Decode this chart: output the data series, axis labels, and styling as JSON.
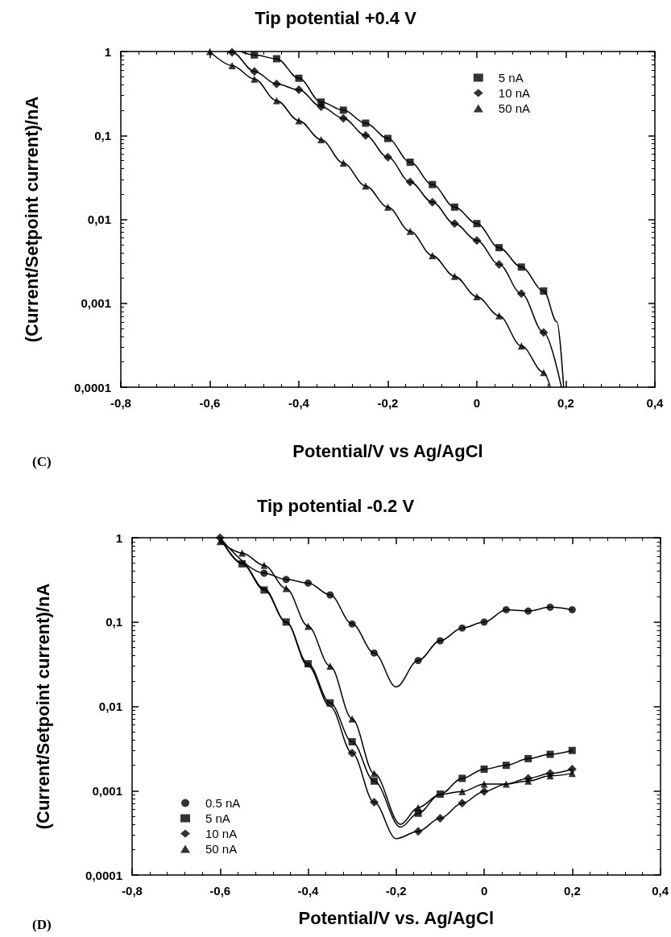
{
  "chart_data": [
    {
      "type": "scatter",
      "title": "Tip potential +0.4 V",
      "xlabel": "Potential/V vs Ag/AgCl",
      "ylabel": "(Current/Setpoint current)/nA",
      "annotations": [
        "(C)"
      ],
      "log": "y",
      "legend": "top right",
      "xlim": [
        -0.8,
        0.4
      ],
      "xticks": [
        {
          "value": -0.8,
          "label": "-0,8"
        },
        {
          "value": -0.6,
          "label": "-0,6"
        },
        {
          "value": -0.4,
          "label": "-0,4"
        },
        {
          "value": -0.2,
          "label": "-0,2"
        },
        0,
        {
          "value": 0.2,
          "label": "0,2"
        },
        {
          "value": 0.4,
          "label": "0,4"
        }
      ],
      "ylim": [
        0.0001,
        1
      ],
      "yticks": [
        {
          "value": 0.0001,
          "label": "0,0001"
        },
        {
          "value": 0.001,
          "label": "0,001"
        },
        {
          "value": 0.01,
          "label": "0,01"
        },
        {
          "value": 0.1,
          "label": "0,1"
        },
        1
      ],
      "series": [
        {
          "name": "5 nA",
          "color": "#000000",
          "marker": "square",
          "x": [
            -0.5,
            -0.45,
            -0.4,
            -0.35,
            -0.3,
            -0.25,
            -0.2,
            -0.15,
            -0.1,
            -0.05,
            0,
            0.05,
            0.1,
            0.15
          ],
          "values": [
            0.91,
            0.82,
            0.48,
            0.25,
            0.2,
            0.14,
            0.092,
            0.048,
            0.026,
            0.014,
            0.0089,
            0.0046,
            0.0027,
            0.0014
          ]
        },
        {
          "name": "10 nA",
          "color": "#000000",
          "marker": "diamond",
          "x": [
            -0.55,
            -0.5,
            -0.45,
            -0.4,
            -0.35,
            -0.3,
            -0.25,
            -0.2,
            -0.15,
            -0.1,
            -0.05,
            0,
            0.05,
            0.1,
            0.15
          ],
          "values": [
            0.98,
            0.58,
            0.41,
            0.35,
            0.22,
            0.16,
            0.1,
            0.055,
            0.028,
            0.016,
            0.0089,
            0.0056,
            0.0029,
            0.0013,
            0.00045
          ]
        },
        {
          "name": "50 nA",
          "color": "#000000",
          "marker": "triangle",
          "x": [
            -0.6,
            -0.55,
            -0.5,
            -0.45,
            -0.4,
            -0.35,
            -0.3,
            -0.25,
            -0.2,
            -0.15,
            -0.1,
            -0.05,
            0,
            0.05,
            0.1,
            0.15
          ],
          "values": [
            1,
            0.68,
            0.47,
            0.26,
            0.15,
            0.089,
            0.047,
            0.025,
            0.014,
            0.0072,
            0.0037,
            0.0021,
            0.0012,
            0.00071,
            0.00031,
            0.00015
          ]
        },
        {
          "type": "line",
          "color": "#000000",
          "marker": "none",
          "x": [
            -0.53,
            -0.5,
            -0.45,
            -0.4,
            -0.35,
            -0.3,
            -0.25,
            -0.2,
            -0.15,
            -0.1,
            -0.05,
            0,
            0.05,
            0.1,
            0.15,
            0.18,
            0.195
          ],
          "values": [
            1,
            0.91,
            0.82,
            0.48,
            0.25,
            0.2,
            0.14,
            0.092,
            0.048,
            0.026,
            0.014,
            0.0089,
            0.0046,
            0.0027,
            0.0014,
            0.0006,
            0.0001
          ]
        },
        {
          "type": "line",
          "color": "#000000",
          "marker": "none",
          "x": [
            -0.56,
            -0.55,
            -0.5,
            -0.45,
            -0.4,
            -0.35,
            -0.3,
            -0.25,
            -0.2,
            -0.15,
            -0.1,
            -0.05,
            0,
            0.05,
            0.1,
            0.15,
            0.19
          ],
          "values": [
            1,
            0.98,
            0.58,
            0.41,
            0.35,
            0.22,
            0.16,
            0.1,
            0.055,
            0.028,
            0.016,
            0.0089,
            0.0056,
            0.0029,
            0.0013,
            0.00045,
            0.0001
          ]
        },
        {
          "type": "line",
          "color": "#000000",
          "marker": "none",
          "x": [
            -0.6,
            -0.55,
            -0.5,
            -0.45,
            -0.4,
            -0.35,
            -0.3,
            -0.25,
            -0.2,
            -0.15,
            -0.1,
            -0.05,
            0,
            0.05,
            0.1,
            0.15,
            0.165
          ],
          "values": [
            1,
            0.68,
            0.47,
            0.26,
            0.15,
            0.089,
            0.047,
            0.025,
            0.014,
            0.0072,
            0.0037,
            0.0021,
            0.0012,
            0.00071,
            0.00031,
            0.00015,
            0.0001
          ]
        }
      ]
    },
    {
      "type": "scatter",
      "title": "Tip potential -0.2 V",
      "xlabel": "Potential/V vs. Ag/AgCl",
      "ylabel": "(Current/Setpoint current)/nA",
      "annotations": [
        "(D)"
      ],
      "log": "y",
      "legend": "bottom left",
      "xlim": [
        -0.8,
        0.4
      ],
      "xticks": [
        {
          "value": -0.8,
          "label": "-0,8"
        },
        {
          "value": -0.6,
          "label": "-0,6"
        },
        {
          "value": -0.4,
          "label": "-0,4"
        },
        {
          "value": -0.2,
          "label": "-0,2"
        },
        0,
        {
          "value": 0.2,
          "label": "0,2"
        },
        {
          "value": 0.4,
          "label": "0,4"
        }
      ],
      "ylim": [
        0.0001,
        1
      ],
      "yticks": [
        {
          "value": 0.0001,
          "label": "0,0001"
        },
        {
          "value": 0.001,
          "label": "0,001"
        },
        {
          "value": 0.01,
          "label": "0,01"
        },
        {
          "value": 0.1,
          "label": "0,1"
        },
        1
      ],
      "series": [
        {
          "name": "0.5 nA",
          "color": "#000000",
          "marker": "circle",
          "x": [
            -0.5,
            -0.45,
            -0.4,
            -0.35,
            -0.3,
            -0.25,
            -0.15,
            -0.1,
            -0.05,
            0,
            0.05,
            0.1,
            0.15,
            0.2
          ],
          "values": [
            0.38,
            0.32,
            0.29,
            0.21,
            0.095,
            0.043,
            0.035,
            0.06,
            0.085,
            0.1,
            0.14,
            0.135,
            0.15,
            0.14
          ]
        },
        {
          "name": "5 nA",
          "color": "#000000",
          "marker": "square",
          "x": [
            -0.55,
            -0.5,
            -0.45,
            -0.4,
            -0.35,
            -0.3,
            -0.25,
            -0.15,
            -0.1,
            -0.05,
            0,
            0.05,
            0.1,
            0.15,
            0.2
          ],
          "values": [
            0.49,
            0.24,
            0.1,
            0.032,
            0.011,
            0.0038,
            0.0013,
            0.00054,
            0.00091,
            0.0014,
            0.0018,
            0.002,
            0.0024,
            0.0027,
            0.003
          ]
        },
        {
          "name": "10 nA",
          "color": "#000000",
          "marker": "diamond",
          "x": [
            -0.6,
            -0.3,
            -0.25,
            -0.15,
            -0.1,
            -0.05,
            0,
            0.05,
            0.1,
            0.15,
            0.2
          ],
          "values": [
            1,
            0.0028,
            0.00073,
            0.00033,
            0.00047,
            0.00071,
            0.00098,
            null,
            0.0014,
            0.0016,
            0.0018
          ]
        },
        {
          "name": "50 nA",
          "color": "#000000",
          "marker": "triangle",
          "x": [
            -0.6,
            -0.55,
            -0.5,
            -0.45,
            -0.4,
            -0.35,
            -0.3,
            -0.25,
            -0.15,
            -0.05,
            0,
            0.05,
            0.1,
            0.15,
            0.2
          ],
          "values": [
            0.9,
            0.66,
            0.47,
            0.25,
            0.089,
            0.03,
            0.0071,
            0.0016,
            0.00063,
            0.00098,
            0.0012,
            0.0012,
            0.0013,
            0.0015,
            0.0016
          ]
        },
        {
          "type": "line",
          "color": "#000000",
          "marker": "none",
          "x": [
            -0.6,
            -0.5,
            -0.45,
            -0.4,
            -0.35,
            -0.3,
            -0.25,
            -0.2,
            -0.15,
            -0.1,
            -0.05,
            0,
            0.05,
            0.1,
            0.15,
            0.2
          ],
          "values": [
            1,
            0.38,
            0.32,
            0.29,
            0.21,
            0.095,
            0.043,
            0.017,
            0.035,
            0.06,
            0.085,
            0.1,
            0.14,
            0.135,
            0.15,
            0.14
          ]
        },
        {
          "type": "line",
          "color": "#000000",
          "marker": "none",
          "x": [
            -0.6,
            -0.55,
            -0.5,
            -0.45,
            -0.4,
            -0.35,
            -0.3,
            -0.25,
            -0.19,
            -0.15,
            -0.1,
            -0.05,
            0,
            0.05,
            0.1,
            0.15,
            0.2
          ],
          "values": [
            1,
            0.49,
            0.24,
            0.1,
            0.032,
            0.011,
            0.0038,
            0.0013,
            0.00037,
            0.00054,
            0.00091,
            0.0014,
            0.0018,
            0.002,
            0.0024,
            0.0027,
            0.003
          ]
        },
        {
          "type": "line",
          "color": "#000000",
          "marker": "none",
          "x": [
            -0.6,
            -0.55,
            -0.5,
            -0.45,
            -0.4,
            -0.35,
            -0.3,
            -0.25,
            -0.2,
            -0.15,
            -0.1,
            -0.05,
            0,
            0.05,
            0.1,
            0.15,
            0.2
          ],
          "values": [
            1,
            0.5,
            0.25,
            0.1,
            0.03,
            0.01,
            0.0028,
            0.00073,
            0.00027,
            0.00033,
            0.00047,
            0.00071,
            0.00098,
            0.0012,
            0.0014,
            0.0016,
            0.0018
          ]
        },
        {
          "type": "line",
          "color": "#000000",
          "marker": "none",
          "x": [
            -0.6,
            -0.55,
            -0.5,
            -0.45,
            -0.4,
            -0.35,
            -0.3,
            -0.25,
            -0.19,
            -0.15,
            -0.1,
            -0.05,
            0,
            0.05,
            0.1,
            0.15,
            0.2
          ],
          "values": [
            0.9,
            0.66,
            0.47,
            0.25,
            0.089,
            0.03,
            0.0071,
            0.0016,
            0.0004,
            0.00063,
            0.0009,
            0.00098,
            0.0012,
            0.0012,
            0.0013,
            0.0015,
            0.0016
          ]
        }
      ]
    }
  ]
}
